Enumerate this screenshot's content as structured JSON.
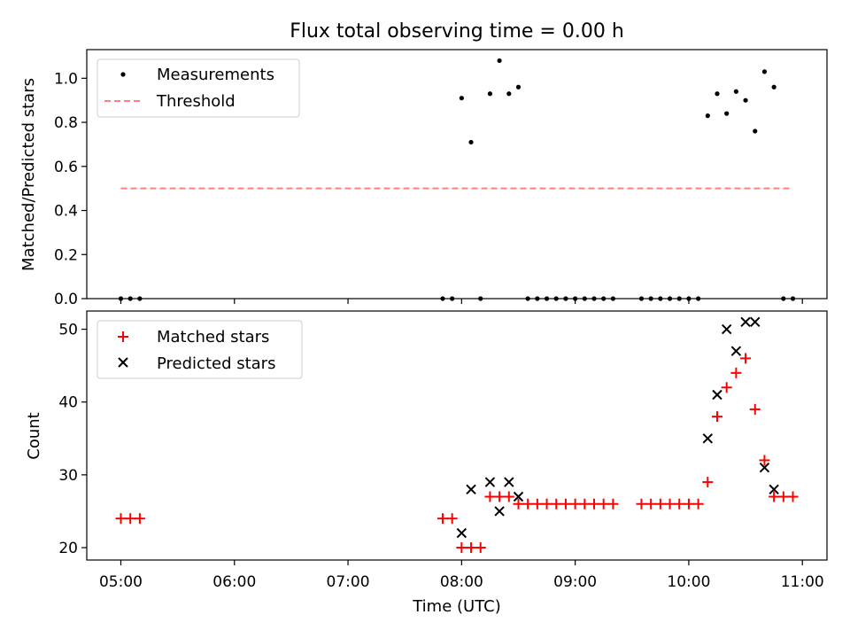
{
  "chart_data": [
    {
      "type": "scatter",
      "title": "Flux total observing time = 0.00 h",
      "xlabel": "",
      "ylabel": "Matched/Predicted stars",
      "xlim": [
        "04:42",
        "11:13"
      ],
      "ylim": [
        0,
        1.13
      ],
      "yticks": [
        0.0,
        0.2,
        0.4,
        0.6,
        0.8,
        1.0
      ],
      "ytick_labels": [
        "0.0",
        "0.2",
        "0.4",
        "0.6",
        "0.8",
        "1.0"
      ],
      "xtick_labels_shown": false,
      "legend_position": "top-left",
      "series": [
        {
          "name": "Measurements",
          "marker": "dot",
          "color": "#000000",
          "x": [
            "05:00",
            "05:05",
            "05:10",
            "07:50",
            "07:55",
            "08:00",
            "08:05",
            "08:10",
            "08:15",
            "08:20",
            "08:25",
            "08:30",
            "08:35",
            "08:40",
            "08:45",
            "08:50",
            "08:55",
            "09:00",
            "09:05",
            "09:10",
            "09:15",
            "09:20",
            "09:35",
            "09:40",
            "09:45",
            "09:50",
            "09:55",
            "10:00",
            "10:05",
            "10:10",
            "10:15",
            "10:20",
            "10:25",
            "10:30",
            "10:35",
            "10:40",
            "10:45",
            "10:50",
            "10:55"
          ],
          "y": [
            0,
            0,
            0,
            0,
            0,
            0.91,
            0.71,
            0,
            0.93,
            1.08,
            0.93,
            0.96,
            0,
            0,
            0,
            0,
            0,
            0,
            0,
            0,
            0,
            0,
            0,
            0,
            0,
            0,
            0,
            0,
            0,
            0.83,
            0.93,
            0.84,
            0.94,
            0.9,
            0.76,
            1.03,
            0.96,
            0,
            0
          ]
        },
        {
          "name": "Threshold",
          "style": "dashed-line",
          "color": "#ff7f7f",
          "x": [
            "05:00",
            "10:55"
          ],
          "y": [
            0.5,
            0.5
          ]
        }
      ]
    },
    {
      "type": "scatter",
      "title": "",
      "xlabel": "Time (UTC)",
      "ylabel": "Count",
      "xlim": [
        "04:42",
        "11:13"
      ],
      "ylim": [
        18.3,
        52.5
      ],
      "yticks": [
        20,
        30,
        40,
        50
      ],
      "ytick_labels": [
        "20",
        "30",
        "40",
        "50"
      ],
      "xticks": [
        "05:00",
        "06:00",
        "07:00",
        "08:00",
        "09:00",
        "10:00",
        "11:00"
      ],
      "legend_position": "top-left",
      "series": [
        {
          "name": "Matched stars",
          "marker": "plus",
          "color": "#ff0000",
          "x": [
            "05:00",
            "05:05",
            "05:10",
            "07:50",
            "07:55",
            "08:00",
            "08:05",
            "08:10",
            "08:15",
            "08:20",
            "08:25",
            "08:30",
            "08:35",
            "08:40",
            "08:45",
            "08:50",
            "08:55",
            "09:00",
            "09:05",
            "09:10",
            "09:15",
            "09:20",
            "09:35",
            "09:40",
            "09:45",
            "09:50",
            "09:55",
            "10:00",
            "10:05",
            "10:10",
            "10:15",
            "10:20",
            "10:25",
            "10:30",
            "10:35",
            "10:40",
            "10:45",
            "10:50",
            "10:55"
          ],
          "y": [
            24,
            24,
            24,
            24,
            24,
            20,
            20,
            20,
            27,
            27,
            27,
            26,
            26,
            26,
            26,
            26,
            26,
            26,
            26,
            26,
            26,
            26,
            26,
            26,
            26,
            26,
            26,
            26,
            26,
            29,
            38,
            42,
            44,
            46,
            39,
            32,
            27,
            27,
            27
          ]
        },
        {
          "name": "Predicted stars",
          "marker": "x",
          "color": "#000000",
          "x": [
            "08:00",
            "08:05",
            "08:15",
            "08:20",
            "08:25",
            "08:30",
            "10:10",
            "10:15",
            "10:20",
            "10:25",
            "10:30",
            "10:35",
            "10:40",
            "10:45"
          ],
          "y": [
            22,
            28,
            29,
            25,
            29,
            27,
            35,
            41,
            50,
            47,
            51,
            51,
            31,
            28
          ]
        }
      ]
    }
  ]
}
